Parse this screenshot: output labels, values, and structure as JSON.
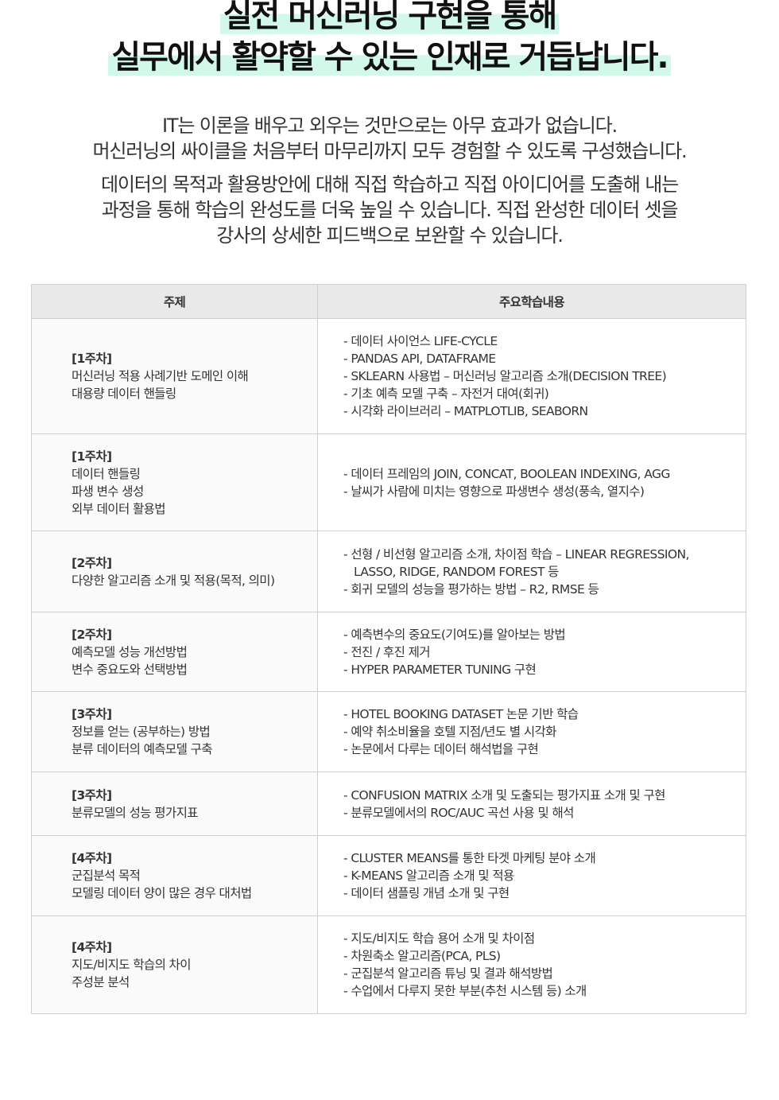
{
  "title": [
    "실전 머신러닝 구현을 통해",
    "실무에서 활약할 수 있는 인재로 거듭납니다."
  ],
  "intro1": [
    "IT는 이론을 배우고 외우는 것만으로는 아무 효과가 없습니다.",
    "머신러닝의 싸이클을 처음부터 마무리까지 모두 경험할 수 있도록 구성했습니다."
  ],
  "intro2": [
    "데이터의 목적과 활용방안에 대해 직접 학습하고 직접 아이디어를 도출해 내는",
    "과정을 통해 학습의 완성도를 더욱 높일 수 있습니다. 직접 완성한 데이터 셋을",
    "강사의 상세한 피드백으로 보완할 수 있습니다."
  ],
  "table": {
    "headers": [
      "주제",
      "주요학습내용"
    ],
    "rows": [
      {
        "height": 145,
        "week": "[1주차]",
        "topics": [
          "머신러닝 적용 사례기반 도메인 이해",
          "대용량 데이터 핸들링"
        ],
        "contents": [
          "- 데이터 사이언스 LIFE-CYCLE",
          "- PANDAS API, DATAFRAME",
          "- SKLEARN 사용법 – 머신러닝 알고리즘 소개(DECISION TREE)",
          "- 기초 예측 모델 구축 – 자전거 대여(회귀)",
          "- 시각화 라이브러리 – MATPLOTLIB, SEABORN"
        ]
      },
      {
        "height": 122,
        "week": "[1주차]",
        "topics": [
          "데이터 핸들링",
          "파생 변수 생성",
          "외부 데이터 활용법"
        ],
        "contents": [
          "- 데이터 프레임의 JOIN, CONCAT, BOOLEAN INDEXING, AGG",
          "- 날씨가 사람에 미치는 영향으로 파생변수 생성(풍속, 열지수)"
        ]
      },
      {
        "height": 102,
        "week": "[2주차]",
        "topics": [
          "다양한 알고리즘 소개 및 적용(목적, 의미)"
        ],
        "contents": [
          "- 선형 / 비선형 알고리즘 소개, 차이점 학습 – LINEAR REGRESSION,",
          "   LASSO, RIDGE, RANDOM FOREST 등",
          "- 회귀 모델의 성능을 평가하는 방법 – R2, RMSE 등"
        ]
      },
      {
        "height": 100,
        "week": "[2주차]",
        "topics": [
          "예측모델 성능 개선방법",
          "변수 중요도와 선택방법"
        ],
        "contents": [
          "- 예측변수의 중요도(기여도)를 알아보는 방법",
          "- 전진 / 후진 제거",
          "- HYPER PARAMETER TUNING 구현"
        ]
      },
      {
        "height": 101,
        "week": "[3주차]",
        "topics": [
          "정보를 얻는 (공부하는) 방법",
          "분류 데이터의 예측모델 구축"
        ],
        "contents": [
          "- HOTEL BOOKING DATASET 논문 기반 학습",
          "- 예약 취소비율을 호텔 지점/년도 별 시각화",
          "- 논문에서 다루는 데이터 해석법을 구현"
        ]
      },
      {
        "height": 80,
        "week": "[3주차]",
        "topics": [
          "분류모델의 성능 평가지표"
        ],
        "contents": [
          "- CONFUSION MATRIX 소개 및 도출되는 평가지표 소개 및 구현",
          "- 분류모델에서의 ROC/AUC 곡선 사용 및 해석"
        ]
      },
      {
        "height": 101,
        "week": "[4주차]",
        "topics": [
          "군집분석 목적",
          "모델링 데이터 양이 많은 경우 대처법"
        ],
        "contents": [
          "- CLUSTER MEANS를 통한 타겟 마케팅 분야 소개",
          "- K-MEANS 알고리즘 소개 및 적용",
          "- 데이터 샘플링 개념 소개 및 구현"
        ]
      },
      {
        "height": 123,
        "week": "[4주차]",
        "topics": [
          "지도/비지도 학습의 차이",
          "주성분 분석"
        ],
        "contents": [
          "- 지도/비지도 학습 용어 소개 및 차이점",
          "- 차원축소 알고리즘(PCA, PLS)",
          "- 군집분석 알고리즘 튜닝 및 결과 해석방법",
          "- 수업에서 다루지 못한 부분(추천 시스템 등) 소개"
        ]
      }
    ]
  }
}
